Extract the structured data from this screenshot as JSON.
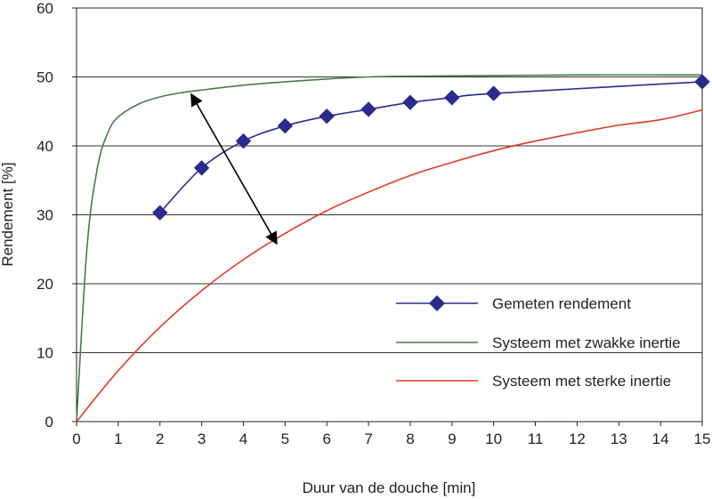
{
  "chart_data": {
    "type": "line",
    "xlabel": "Duur van de douche [min]",
    "ylabel": "Rendement [%]",
    "xlim": [
      0,
      15
    ],
    "ylim": [
      0,
      60
    ],
    "x_ticks": [
      "0",
      "1",
      "2",
      "3",
      "4",
      "5",
      "6",
      "7",
      "8",
      "9",
      "10",
      "11",
      "12",
      "13",
      "14",
      "15"
    ],
    "y_ticks": [
      "0",
      "10",
      "20",
      "30",
      "40",
      "50",
      "60"
    ],
    "grid": "horizontal",
    "legend_position": "lower-right",
    "series": [
      {
        "name": "Gemeten rendement",
        "color": "#2b2b8c",
        "marker": "diamond",
        "x": [
          2,
          3,
          4,
          5,
          6,
          7,
          8,
          9,
          10,
          15
        ],
        "y": [
          30.3,
          36.8,
          40.7,
          42.9,
          44.3,
          45.3,
          46.3,
          47.0,
          47.6,
          49.3
        ]
      },
      {
        "name": "Systeem met zwakke inertie",
        "color": "#4a7a4a",
        "x": [
          0,
          0.25,
          0.5,
          0.75,
          1,
          1.5,
          2,
          2.5,
          3,
          4,
          5,
          6,
          7,
          8,
          10,
          12,
          15
        ],
        "y": [
          0,
          25.2,
          36.8,
          41.9,
          44.2,
          46.1,
          47.1,
          47.7,
          48.1,
          48.8,
          49.3,
          49.7,
          50.0,
          50.1,
          50.2,
          50.3,
          50.3
        ]
      },
      {
        "name": "Systeem met sterke inertie",
        "color": "#e23a2a",
        "x": [
          0,
          1,
          2,
          3,
          4,
          5,
          6,
          7,
          8,
          9,
          10,
          11,
          12,
          13,
          14,
          15
        ],
        "y": [
          0,
          7.4,
          13.7,
          19.0,
          23.5,
          27.3,
          30.6,
          33.3,
          35.7,
          37.6,
          39.3,
          40.7,
          41.9,
          43.0,
          43.8,
          45.2
        ]
      }
    ],
    "annotation": "double-headed arrow between the two model curves"
  }
}
